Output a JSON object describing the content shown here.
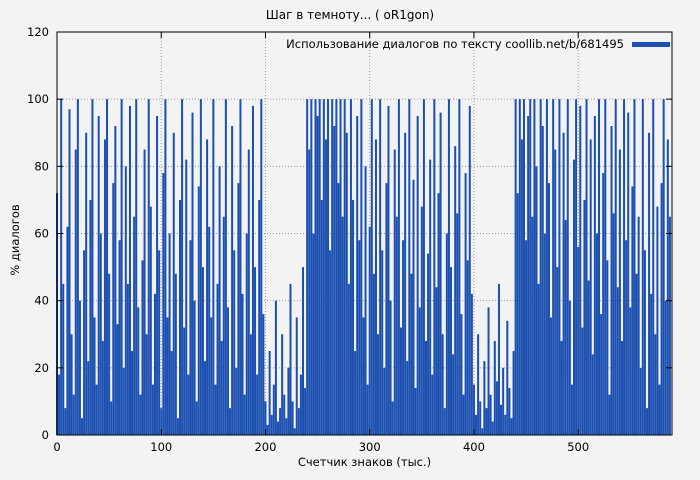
{
  "colors": {
    "accent": "#1b4fb0",
    "grid": "#9a9a9a",
    "background": "#f3f3f3"
  },
  "chart_data": {
    "type": "bar",
    "title": "Шаг в темноту... ( oR1gon)",
    "legend": "Использование диалогов по тексту coollib.net/b/681495",
    "xlabel": "Счетчик знаков (тыс.)",
    "ylabel": "% диалогов",
    "xlim": [
      0,
      590
    ],
    "ylim": [
      0,
      120
    ],
    "xticks": [
      0,
      100,
      200,
      300,
      400,
      500
    ],
    "xtick_labels": [
      "0",
      "100",
      "200",
      "300",
      "400",
      "500"
    ],
    "yticks": [
      0,
      20,
      40,
      60,
      80,
      100,
      120
    ],
    "ytick_labels": [
      "0",
      "20",
      "40",
      "60",
      "80",
      "100",
      "120"
    ],
    "grid": true,
    "legend_position": "top-right",
    "x_start": 0,
    "x_step": 2,
    "values": [
      72,
      18,
      100,
      45,
      8,
      62,
      97,
      30,
      12,
      85,
      100,
      40,
      5,
      55,
      90,
      22,
      70,
      100,
      35,
      15,
      95,
      60,
      28,
      88,
      100,
      48,
      10,
      75,
      92,
      33,
      58,
      100,
      20,
      80,
      45,
      98,
      25,
      65,
      100,
      38,
      12,
      52,
      85,
      30,
      100,
      68,
      15,
      42,
      95,
      55,
      8,
      78,
      100,
      35,
      60,
      25,
      90,
      48,
      5,
      70,
      100,
      32,
      82,
      18,
      58,
      96,
      40,
      10,
      74,
      100,
      50,
      22,
      88,
      62,
      35,
      100,
      15,
      45,
      80,
      28,
      65,
      100,
      38,
      8,
      92,
      55,
      20,
      75,
      100,
      42,
      12,
      60,
      85,
      30,
      98,
      50,
      18,
      70,
      100,
      36,
      10,
      3,
      25,
      6,
      15,
      40,
      4,
      8,
      30,
      12,
      5,
      20,
      45,
      10,
      2,
      35,
      8,
      18,
      50,
      14,
      100,
      85,
      100,
      60,
      100,
      95,
      100,
      70,
      100,
      88,
      100,
      55,
      100,
      92,
      100,
      75,
      100,
      65,
      100,
      90,
      45,
      100,
      70,
      25,
      95,
      58,
      100,
      35,
      80,
      15,
      62,
      100,
      48,
      88,
      30,
      100,
      55,
      20,
      75,
      98,
      40,
      10,
      85,
      65,
      100,
      32,
      58,
      90,
      22,
      100,
      48,
      76,
      14,
      95,
      38,
      68,
      100,
      28,
      54,
      82,
      18,
      100,
      44,
      72,
      96,
      30,
      8,
      60,
      100,
      50,
      24,
      86,
      66,
      100,
      36,
      12,
      78,
      52,
      98,
      42,
      15,
      6,
      30,
      10,
      2,
      22,
      8,
      38,
      12,
      4,
      28,
      16,
      45,
      9,
      20,
      6,
      34,
      14,
      5,
      25,
      100,
      72,
      100,
      88,
      100,
      58,
      95,
      100,
      65,
      100,
      80,
      45,
      100,
      92,
      60,
      100,
      75,
      35,
      100,
      85,
      50,
      100,
      28,
      90,
      64,
      100,
      40,
      15,
      82,
      100,
      56,
      98,
      32,
      70,
      100,
      46,
      88,
      24,
      95,
      60,
      100,
      36,
      78,
      100,
      52,
      12,
      92,
      66,
      100,
      44,
      85,
      28,
      100,
      58,
      96,
      38,
      74,
      100,
      48,
      65,
      20,
      100,
      55,
      8,
      90,
      42,
      100,
      30,
      68,
      15,
      75,
      100,
      40,
      88,
      65
    ]
  }
}
